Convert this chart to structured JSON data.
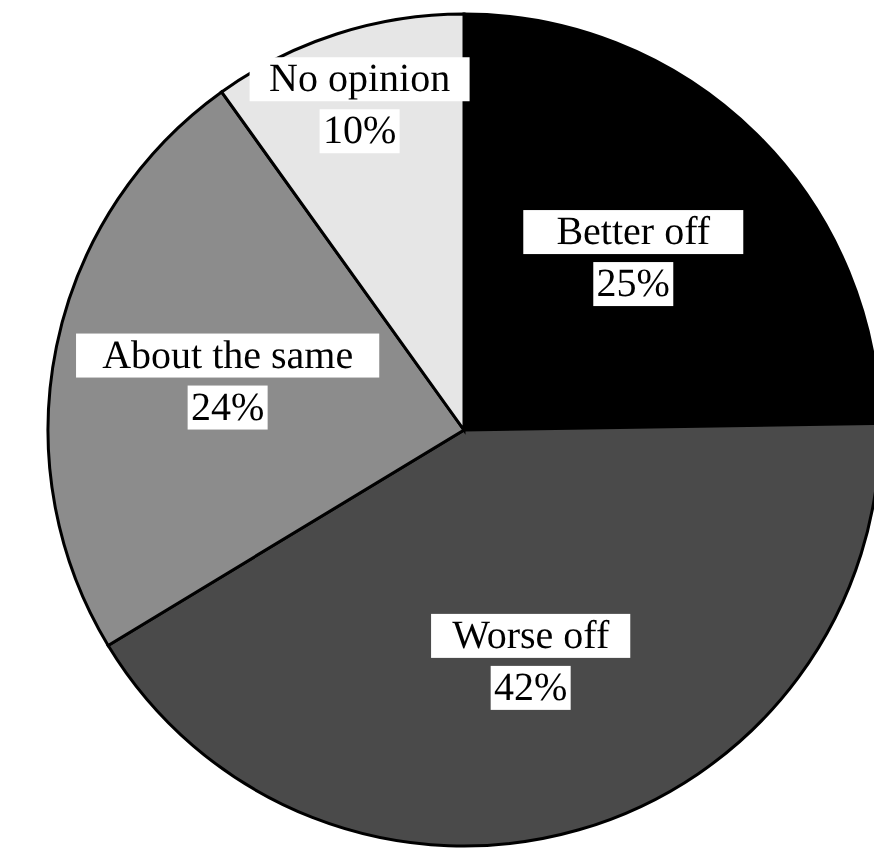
{
  "chart_data": {
    "type": "pie",
    "categories": [
      "Better off",
      "Worse off",
      "About the same",
      "No opinion"
    ],
    "values": [
      25,
      42,
      24,
      10
    ],
    "colors": [
      "#000000",
      "#4a4a4a",
      "#8c8c8c",
      "#e6e6e6"
    ],
    "value_labels": [
      "25%",
      "42%",
      "24%",
      "10%"
    ]
  }
}
